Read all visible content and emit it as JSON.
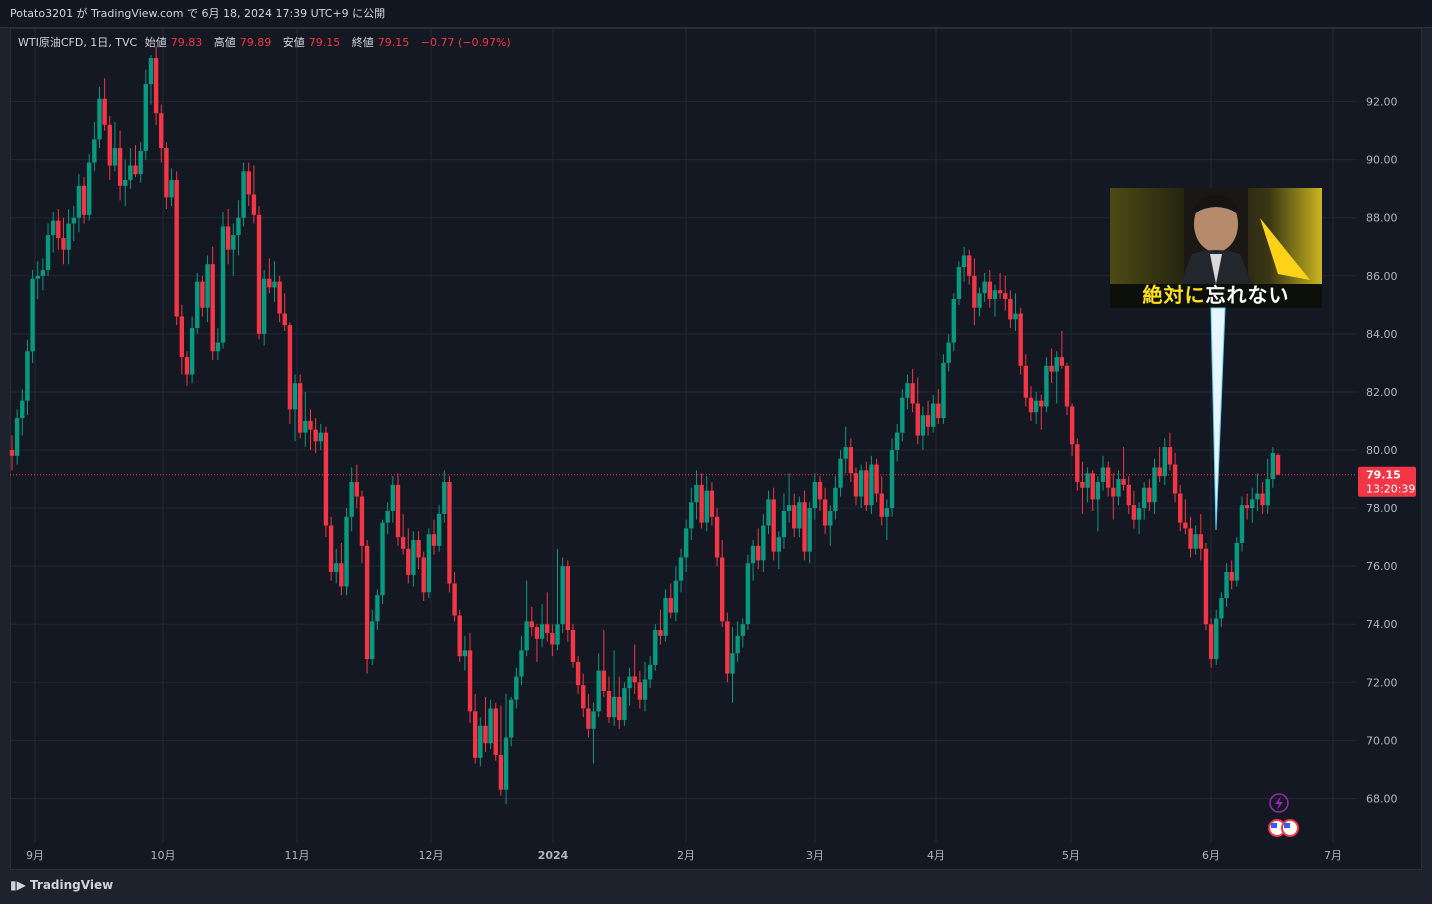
{
  "header": {
    "publish_line": "Potato3201 が TradingView.com で 6月 18, 2024 17:39 UTC+9 に公開"
  },
  "legend": {
    "symbol": "WTI原油CFD, 1日, TVC",
    "open_label": "始値",
    "open_value": "79.83",
    "high_label": "高値",
    "high_value": "79.89",
    "low_label": "安値",
    "low_value": "79.15",
    "close_label": "終値",
    "close_value": "79.15",
    "change": "−0.77 (−0.97%)"
  },
  "price_tag": {
    "price": "79.15",
    "countdown": "13:20:39"
  },
  "overlay": {
    "caption_a": "絶対に",
    "caption_b": "忘れない"
  },
  "footer": {
    "brand": "TradingView"
  },
  "colors": {
    "up": "#089981",
    "down": "#f23645",
    "background": "#141823",
    "grid": "#232733"
  },
  "icons": [
    "lightning-icon",
    "us-flag-icon"
  ],
  "chart_data": {
    "type": "candlestick",
    "title": "WTI原油CFD, 1日, TVC",
    "ylim": [
      66.5,
      94.5
    ],
    "y_ticks": [
      "92.00",
      "90.00",
      "88.00",
      "86.00",
      "84.00",
      "82.00",
      "80.00",
      "78.00",
      "76.00",
      "74.00",
      "72.00",
      "70.00",
      "68.00"
    ],
    "x_tick_labels": [
      "9月",
      "10月",
      "11月",
      "12月",
      "2024",
      "2月",
      "3月",
      "4月",
      "5月",
      "6月",
      "7月"
    ],
    "last_price": 79.15,
    "ohlc": [
      [
        80.0,
        80.5,
        79.3,
        79.8
      ],
      [
        79.8,
        81.4,
        79.5,
        81.1
      ],
      [
        81.1,
        82.1,
        80.5,
        81.7
      ],
      [
        81.7,
        83.8,
        81.2,
        83.4
      ],
      [
        83.4,
        86.2,
        83.0,
        85.9
      ],
      [
        85.9,
        86.5,
        85.2,
        86.0
      ],
      [
        86.0,
        86.6,
        85.5,
        86.2
      ],
      [
        86.2,
        87.8,
        86.0,
        87.4
      ],
      [
        87.4,
        88.2,
        86.8,
        87.9
      ],
      [
        87.9,
        88.3,
        86.9,
        87.3
      ],
      [
        87.3,
        88.0,
        86.4,
        86.9
      ],
      [
        86.9,
        88.3,
        86.4,
        87.8
      ],
      [
        87.8,
        88.4,
        87.2,
        88.0
      ],
      [
        88.0,
        89.5,
        87.5,
        89.1
      ],
      [
        89.1,
        89.4,
        87.8,
        88.1
      ],
      [
        88.1,
        90.2,
        87.9,
        89.9
      ],
      [
        89.9,
        91.3,
        89.6,
        90.7
      ],
      [
        90.7,
        92.5,
        90.4,
        92.1
      ],
      [
        92.1,
        92.8,
        91.0,
        91.2
      ],
      [
        91.2,
        91.5,
        89.3,
        89.8
      ],
      [
        89.8,
        91.3,
        89.6,
        90.4
      ],
      [
        90.4,
        91.0,
        88.6,
        89.1
      ],
      [
        89.1,
        90.0,
        88.4,
        89.3
      ],
      [
        89.3,
        90.4,
        89.0,
        89.8
      ],
      [
        89.8,
        90.5,
        89.4,
        89.5
      ],
      [
        89.5,
        90.6,
        89.2,
        90.3
      ],
      [
        90.3,
        93.1,
        90.0,
        92.6
      ],
      [
        92.6,
        93.6,
        91.9,
        93.5
      ],
      [
        93.5,
        93.9,
        91.2,
        91.6
      ],
      [
        91.6,
        91.9,
        89.9,
        90.4
      ],
      [
        90.4,
        90.6,
        88.3,
        88.7
      ],
      [
        88.7,
        89.7,
        88.4,
        89.3
      ],
      [
        89.3,
        89.6,
        84.3,
        84.6
      ],
      [
        84.6,
        85.0,
        82.6,
        83.2
      ],
      [
        83.2,
        83.4,
        82.2,
        82.6
      ],
      [
        82.6,
        84.6,
        82.3,
        84.2
      ],
      [
        84.2,
        86.1,
        84.0,
        85.8
      ],
      [
        85.8,
        86.0,
        84.6,
        84.9
      ],
      [
        84.9,
        86.7,
        84.4,
        86.4
      ],
      [
        86.4,
        87.0,
        83.1,
        83.4
      ],
      [
        83.4,
        84.2,
        83.1,
        83.7
      ],
      [
        83.7,
        88.2,
        83.5,
        87.7
      ],
      [
        87.7,
        88.3,
        86.4,
        86.9
      ],
      [
        86.9,
        87.8,
        86.0,
        87.4
      ],
      [
        87.4,
        88.6,
        86.7,
        88.0
      ],
      [
        88.0,
        89.9,
        87.7,
        89.6
      ],
      [
        89.6,
        89.9,
        88.4,
        88.8
      ],
      [
        88.8,
        89.8,
        87.8,
        88.1
      ],
      [
        88.1,
        88.4,
        83.8,
        84.0
      ],
      [
        84.0,
        86.2,
        83.6,
        85.9
      ],
      [
        85.9,
        86.6,
        85.4,
        85.6
      ],
      [
        85.6,
        86.5,
        85.1,
        85.8
      ],
      [
        85.8,
        86.0,
        84.4,
        84.7
      ],
      [
        84.7,
        85.4,
        84.1,
        84.3
      ],
      [
        84.3,
        84.4,
        80.9,
        81.4
      ],
      [
        81.4,
        82.6,
        80.3,
        82.3
      ],
      [
        82.3,
        82.6,
        80.4,
        80.6
      ],
      [
        80.6,
        82.0,
        80.1,
        81.0
      ],
      [
        81.0,
        81.4,
        80.0,
        80.7
      ],
      [
        80.7,
        81.1,
        79.9,
        80.3
      ],
      [
        80.3,
        80.9,
        80.0,
        80.6
      ],
      [
        80.6,
        80.8,
        77.0,
        77.4
      ],
      [
        77.4,
        77.7,
        75.5,
        75.8
      ],
      [
        75.8,
        76.6,
        75.4,
        76.1
      ],
      [
        76.1,
        76.8,
        75.0,
        75.3
      ],
      [
        75.3,
        78.0,
        75.0,
        77.7
      ],
      [
        77.7,
        79.4,
        77.2,
        78.9
      ],
      [
        78.9,
        79.5,
        78.0,
        78.4
      ],
      [
        78.4,
        78.6,
        76.1,
        76.7
      ],
      [
        76.7,
        76.9,
        72.3,
        72.8
      ],
      [
        72.8,
        74.5,
        72.6,
        74.1
      ],
      [
        74.1,
        75.2,
        73.8,
        75.0
      ],
      [
        75.0,
        77.6,
        74.7,
        77.5
      ],
      [
        77.5,
        78.2,
        77.1,
        77.9
      ],
      [
        77.9,
        79.1,
        77.5,
        78.8
      ],
      [
        78.8,
        79.2,
        76.7,
        77.0
      ],
      [
        77.0,
        77.8,
        76.4,
        76.6
      ],
      [
        76.6,
        77.3,
        75.4,
        75.7
      ],
      [
        75.7,
        77.2,
        75.3,
        76.9
      ],
      [
        76.9,
        77.2,
        75.9,
        76.3
      ],
      [
        76.3,
        76.5,
        74.8,
        75.1
      ],
      [
        75.1,
        77.3,
        74.9,
        77.1
      ],
      [
        77.1,
        77.6,
        76.4,
        76.7
      ],
      [
        76.7,
        78.1,
        76.5,
        77.8
      ],
      [
        77.8,
        79.3,
        77.5,
        78.9
      ],
      [
        78.9,
        79.1,
        75.1,
        75.4
      ],
      [
        75.4,
        75.8,
        74.1,
        74.3
      ],
      [
        74.3,
        74.5,
        72.7,
        72.9
      ],
      [
        72.9,
        73.6,
        72.4,
        73.1
      ],
      [
        73.1,
        73.7,
        70.6,
        71.0
      ],
      [
        71.0,
        71.6,
        69.2,
        69.4
      ],
      [
        69.4,
        70.8,
        69.1,
        70.5
      ],
      [
        70.5,
        71.5,
        69.6,
        69.9
      ],
      [
        69.9,
        71.4,
        69.7,
        71.1
      ],
      [
        71.1,
        71.3,
        69.3,
        69.5
      ],
      [
        69.5,
        71.2,
        68.1,
        68.3
      ],
      [
        68.3,
        71.6,
        67.8,
        70.1
      ],
      [
        70.1,
        71.5,
        69.8,
        71.4
      ],
      [
        71.4,
        72.5,
        71.1,
        72.2
      ],
      [
        72.2,
        73.6,
        71.9,
        73.1
      ],
      [
        73.1,
        75.5,
        72.9,
        74.1
      ],
      [
        74.1,
        74.6,
        73.6,
        73.9
      ],
      [
        73.9,
        74.0,
        72.7,
        73.5
      ],
      [
        73.5,
        74.7,
        73.2,
        74.0
      ],
      [
        74.0,
        75.1,
        73.4,
        73.7
      ],
      [
        73.7,
        74.0,
        72.9,
        73.3
      ],
      [
        73.3,
        76.6,
        73.1,
        74.0
      ],
      [
        74.0,
        76.3,
        73.7,
        76.0
      ],
      [
        76.0,
        76.2,
        73.4,
        73.8
      ],
      [
        73.8,
        74.0,
        72.5,
        72.7
      ],
      [
        72.7,
        72.9,
        71.6,
        71.9
      ],
      [
        71.9,
        72.3,
        70.8,
        71.1
      ],
      [
        71.1,
        71.6,
        70.1,
        70.4
      ],
      [
        70.4,
        71.3,
        69.2,
        71.0
      ],
      [
        71.0,
        73.0,
        70.8,
        72.4
      ],
      [
        72.4,
        73.8,
        71.5,
        71.7
      ],
      [
        71.7,
        72.2,
        70.6,
        70.8
      ],
      [
        70.8,
        73.1,
        70.5,
        71.5
      ],
      [
        71.5,
        72.2,
        70.4,
        70.7
      ],
      [
        70.7,
        72.0,
        70.5,
        71.8
      ],
      [
        71.8,
        72.5,
        71.2,
        72.2
      ],
      [
        72.2,
        73.3,
        71.6,
        72.0
      ],
      [
        72.0,
        72.4,
        71.1,
        71.4
      ],
      [
        71.4,
        72.7,
        71.0,
        72.1
      ],
      [
        72.1,
        72.9,
        71.8,
        72.6
      ],
      [
        72.6,
        74.0,
        72.4,
        73.8
      ],
      [
        73.8,
        74.5,
        73.3,
        73.6
      ],
      [
        73.6,
        75.2,
        73.4,
        74.9
      ],
      [
        74.9,
        75.4,
        74.2,
        74.4
      ],
      [
        74.4,
        76.0,
        74.1,
        75.5
      ],
      [
        75.5,
        76.6,
        75.1,
        76.3
      ],
      [
        76.3,
        77.6,
        75.8,
        77.3
      ],
      [
        77.3,
        78.7,
        76.9,
        78.2
      ],
      [
        78.2,
        79.3,
        77.6,
        78.8
      ],
      [
        78.8,
        79.2,
        77.3,
        77.5
      ],
      [
        77.5,
        79.1,
        77.2,
        78.6
      ],
      [
        78.6,
        78.9,
        77.4,
        77.7
      ],
      [
        77.7,
        78.0,
        76.0,
        76.3
      ],
      [
        76.3,
        76.9,
        73.9,
        74.1
      ],
      [
        74.1,
        74.4,
        72.0,
        72.3
      ],
      [
        72.3,
        73.9,
        71.3,
        73.0
      ],
      [
        73.0,
        74.1,
        72.7,
        73.6
      ],
      [
        73.6,
        74.2,
        73.2,
        74.0
      ],
      [
        74.0,
        76.4,
        73.8,
        76.1
      ],
      [
        76.1,
        76.9,
        75.5,
        76.7
      ],
      [
        76.7,
        77.3,
        75.9,
        76.2
      ],
      [
        76.2,
        77.8,
        75.8,
        77.4
      ],
      [
        77.4,
        78.6,
        77.1,
        78.3
      ],
      [
        78.3,
        78.7,
        76.2,
        76.5
      ],
      [
        76.5,
        77.2,
        75.9,
        77.0
      ],
      [
        77.0,
        78.5,
        76.6,
        77.9
      ],
      [
        77.9,
        79.2,
        77.5,
        78.1
      ],
      [
        78.1,
        78.5,
        77.0,
        77.3
      ],
      [
        77.3,
        78.4,
        77.0,
        78.2
      ],
      [
        78.2,
        78.6,
        76.2,
        76.5
      ],
      [
        76.5,
        78.2,
        76.1,
        78.0
      ],
      [
        78.0,
        79.2,
        77.6,
        78.9
      ],
      [
        78.9,
        79.1,
        77.9,
        78.3
      ],
      [
        78.3,
        78.7,
        77.1,
        77.4
      ],
      [
        77.4,
        78.1,
        76.7,
        77.9
      ],
      [
        77.9,
        79.1,
        77.6,
        78.7
      ],
      [
        78.7,
        80.0,
        78.4,
        79.7
      ],
      [
        79.7,
        80.8,
        79.2,
        80.1
      ],
      [
        80.1,
        80.4,
        78.9,
        79.2
      ],
      [
        79.2,
        79.4,
        78.1,
        78.4
      ],
      [
        78.4,
        79.5,
        78.0,
        79.3
      ],
      [
        79.3,
        79.6,
        77.9,
        78.1
      ],
      [
        78.1,
        79.8,
        77.8,
        79.5
      ],
      [
        79.5,
        79.7,
        78.2,
        78.5
      ],
      [
        78.5,
        79.1,
        77.4,
        77.7
      ],
      [
        77.7,
        78.3,
        76.9,
        78.0
      ],
      [
        78.0,
        80.4,
        77.7,
        80.0
      ],
      [
        80.0,
        80.9,
        79.6,
        80.6
      ],
      [
        80.6,
        82.1,
        80.3,
        81.8
      ],
      [
        81.8,
        82.6,
        81.4,
        82.3
      ],
      [
        82.3,
        82.8,
        81.3,
        81.6
      ],
      [
        81.6,
        82.5,
        80.2,
        80.5
      ],
      [
        80.5,
        81.5,
        80.0,
        81.2
      ],
      [
        81.2,
        81.7,
        80.5,
        80.8
      ],
      [
        80.8,
        81.9,
        80.6,
        81.6
      ],
      [
        81.6,
        82.1,
        80.9,
        81.1
      ],
      [
        81.1,
        83.3,
        80.9,
        83.0
      ],
      [
        83.0,
        84.0,
        82.7,
        83.7
      ],
      [
        83.7,
        85.4,
        83.4,
        85.2
      ],
      [
        85.2,
        86.5,
        85.0,
        86.3
      ],
      [
        86.3,
        87.0,
        85.8,
        86.7
      ],
      [
        86.7,
        86.9,
        85.7,
        86.0
      ],
      [
        86.0,
        86.6,
        84.3,
        84.9
      ],
      [
        84.9,
        85.6,
        84.6,
        85.4
      ],
      [
        85.4,
        86.1,
        85.1,
        85.8
      ],
      [
        85.8,
        86.2,
        84.9,
        85.2
      ],
      [
        85.2,
        85.7,
        84.6,
        85.5
      ],
      [
        85.5,
        86.1,
        85.2,
        85.4
      ],
      [
        85.4,
        86.0,
        84.8,
        85.2
      ],
      [
        85.2,
        85.5,
        84.2,
        84.5
      ],
      [
        84.5,
        85.4,
        84.1,
        84.7
      ],
      [
        84.7,
        84.9,
        82.6,
        82.9
      ],
      [
        82.9,
        83.3,
        81.5,
        81.8
      ],
      [
        81.8,
        82.2,
        81.0,
        81.3
      ],
      [
        81.3,
        82.0,
        80.9,
        81.7
      ],
      [
        81.7,
        81.9,
        80.7,
        81.5
      ],
      [
        81.5,
        83.2,
        81.3,
        82.9
      ],
      [
        82.9,
        83.5,
        82.3,
        82.7
      ],
      [
        82.7,
        83.4,
        81.6,
        83.2
      ],
      [
        83.2,
        84.1,
        82.8,
        82.9
      ],
      [
        82.9,
        83.0,
        81.2,
        81.5
      ],
      [
        81.5,
        81.6,
        79.8,
        80.2
      ],
      [
        80.2,
        80.4,
        78.6,
        78.9
      ],
      [
        78.9,
        79.6,
        77.8,
        78.7
      ],
      [
        78.7,
        79.4,
        78.2,
        79.2
      ],
      [
        79.2,
        79.3,
        77.9,
        78.3
      ],
      [
        78.3,
        79.1,
        77.2,
        78.9
      ],
      [
        78.9,
        79.8,
        78.6,
        79.4
      ],
      [
        79.4,
        79.6,
        78.4,
        78.7
      ],
      [
        78.7,
        79.2,
        77.6,
        78.4
      ],
      [
        78.4,
        79.3,
        78.1,
        79.0
      ],
      [
        79.0,
        80.1,
        78.6,
        78.8
      ],
      [
        78.8,
        79.1,
        77.8,
        78.1
      ],
      [
        78.1,
        78.6,
        77.3,
        77.6
      ],
      [
        77.6,
        78.2,
        77.1,
        78.0
      ],
      [
        78.0,
        78.9,
        77.6,
        78.7
      ],
      [
        78.7,
        79.0,
        77.9,
        78.2
      ],
      [
        78.2,
        79.7,
        77.8,
        79.4
      ],
      [
        79.4,
        80.1,
        78.9,
        79.1
      ],
      [
        79.1,
        80.4,
        78.8,
        80.1
      ],
      [
        80.1,
        80.6,
        79.3,
        79.5
      ],
      [
        79.5,
        79.9,
        78.2,
        78.5
      ],
      [
        78.5,
        78.8,
        77.2,
        77.5
      ],
      [
        77.5,
        78.3,
        77.1,
        77.3
      ],
      [
        77.3,
        77.7,
        76.3,
        76.6
      ],
      [
        76.6,
        77.4,
        76.4,
        77.1
      ],
      [
        77.1,
        77.8,
        76.2,
        76.6
      ],
      [
        76.6,
        76.8,
        73.8,
        74.0
      ],
      [
        74.0,
        74.2,
        72.5,
        72.8
      ],
      [
        72.8,
        74.5,
        72.6,
        74.2
      ],
      [
        74.2,
        75.1,
        73.9,
        74.9
      ],
      [
        74.9,
        76.1,
        74.6,
        75.8
      ],
      [
        75.8,
        76.2,
        75.2,
        75.5
      ],
      [
        75.5,
        77.0,
        75.3,
        76.8
      ],
      [
        76.8,
        78.4,
        76.5,
        78.1
      ],
      [
        78.1,
        78.5,
        77.6,
        78.0
      ],
      [
        78.0,
        78.7,
        77.5,
        78.3
      ],
      [
        78.3,
        79.2,
        77.9,
        78.5
      ],
      [
        78.5,
        78.9,
        77.8,
        78.1
      ],
      [
        78.1,
        79.7,
        77.8,
        79.0
      ],
      [
        79.0,
        80.1,
        78.7,
        79.9
      ],
      [
        79.83,
        79.89,
        79.15,
        79.15
      ]
    ]
  }
}
